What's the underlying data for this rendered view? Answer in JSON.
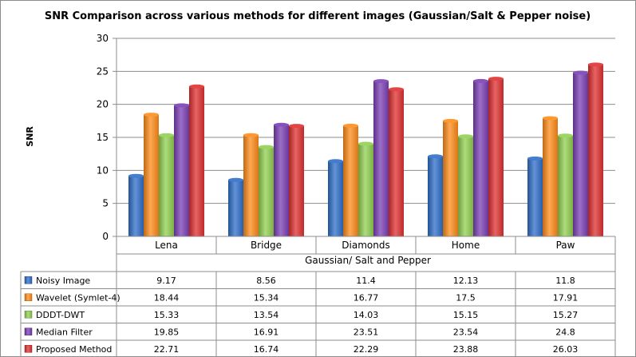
{
  "chart_data": {
    "type": "bar",
    "title": "SNR Comparison across various methods for different images  (Gaussian/Salt & Pepper noise)",
    "ylabel": "SNR",
    "xlabel": "Gaussian/ Salt and Pepper",
    "ylim": [
      0,
      30
    ],
    "yticks": [
      0,
      5,
      10,
      15,
      20,
      25,
      30
    ],
    "grid": true,
    "legend_placement": "data-table-left",
    "categories": [
      "Lena",
      "Bridge",
      "Diamonds",
      "Home",
      "Paw"
    ],
    "series": [
      {
        "name": "Noisy Image",
        "color": "#2f6ec9",
        "values": [
          9.17,
          8.56,
          11.4,
          12.13,
          11.8
        ]
      },
      {
        "name": "Wavelet (Symlet-4)",
        "color": "#ff8c1a",
        "values": [
          18.44,
          15.34,
          16.77,
          17.5,
          17.91
        ]
      },
      {
        "name": "DDDT-DWT",
        "color": "#92d050",
        "values": [
          15.33,
          13.54,
          14.03,
          15.15,
          15.27
        ]
      },
      {
        "name": "Median Filter",
        "color": "#7b3fb5",
        "values": [
          19.85,
          16.91,
          23.51,
          23.54,
          24.8
        ]
      },
      {
        "name": "Proposed Method",
        "color": "#e03030",
        "values": [
          22.71,
          16.74,
          22.29,
          23.88,
          26.03
        ]
      }
    ]
  }
}
